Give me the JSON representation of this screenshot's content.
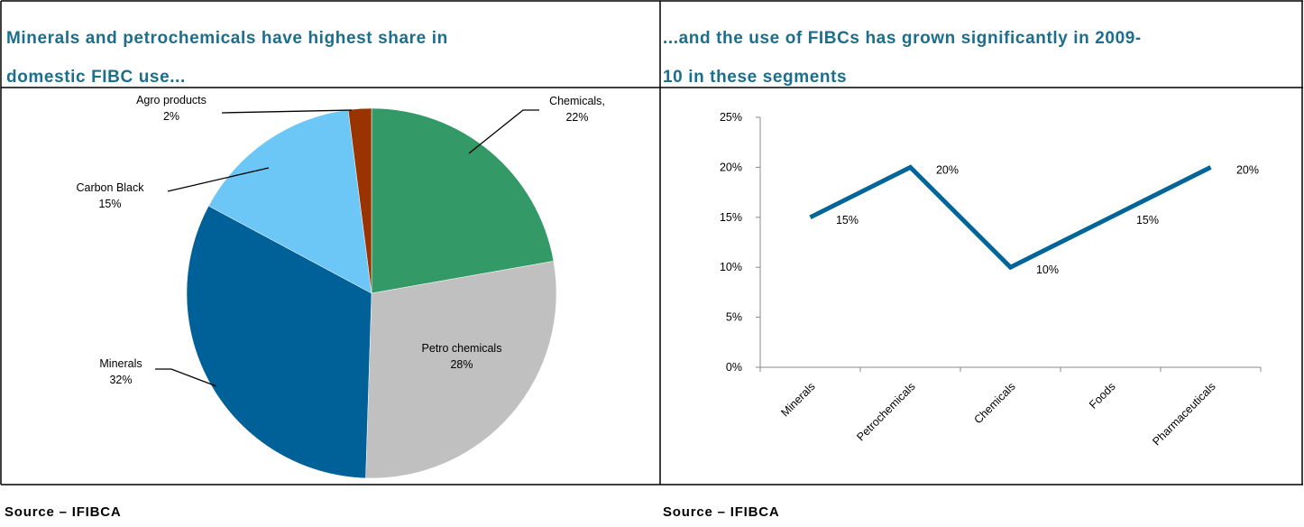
{
  "chart_data": [
    {
      "type": "pie",
      "title": [
        "Minerals and petrochemicals have highest share in",
        "domestic FIBC use..."
      ],
      "categories": [
        "Chemicals,",
        "Petro chemicals",
        "Minerals",
        "Carbon Black",
        "Agro products"
      ],
      "values": [
        22,
        28,
        32,
        15,
        2
      ],
      "value_labels": [
        "22%",
        "28%",
        "32%",
        "15%",
        "2%"
      ],
      "colors": [
        "#339966",
        "#c0c0c0",
        "#006199",
        "#6cc7f7",
        "#993300"
      ],
      "note": "Source – IFIBCA"
    },
    {
      "type": "line",
      "title": [
        "...and the use of FIBCs has grown significantly in 2009-",
        "10 in these segments"
      ],
      "categories": [
        "Minerals",
        "Petrochemicals",
        "Chemicals",
        "Foods",
        "Pharmaceuticals"
      ],
      "series": [
        {
          "color": "#006699",
          "values": [
            15,
            20,
            10,
            15,
            20
          ],
          "value_labels": [
            "15%",
            "20%",
            "10%",
            "15%",
            "20%"
          ]
        }
      ],
      "ylim": [
        0,
        25
      ],
      "yticks": [
        {
          "value": 0,
          "label": "0%"
        },
        {
          "value": 5,
          "label": "5%"
        },
        {
          "value": 10,
          "label": "10%"
        },
        {
          "value": 15,
          "label": "15%"
        },
        {
          "value": 20,
          "label": "20%"
        },
        {
          "value": 25,
          "label": "25%"
        }
      ],
      "note": "Source – IFIBCA"
    }
  ]
}
